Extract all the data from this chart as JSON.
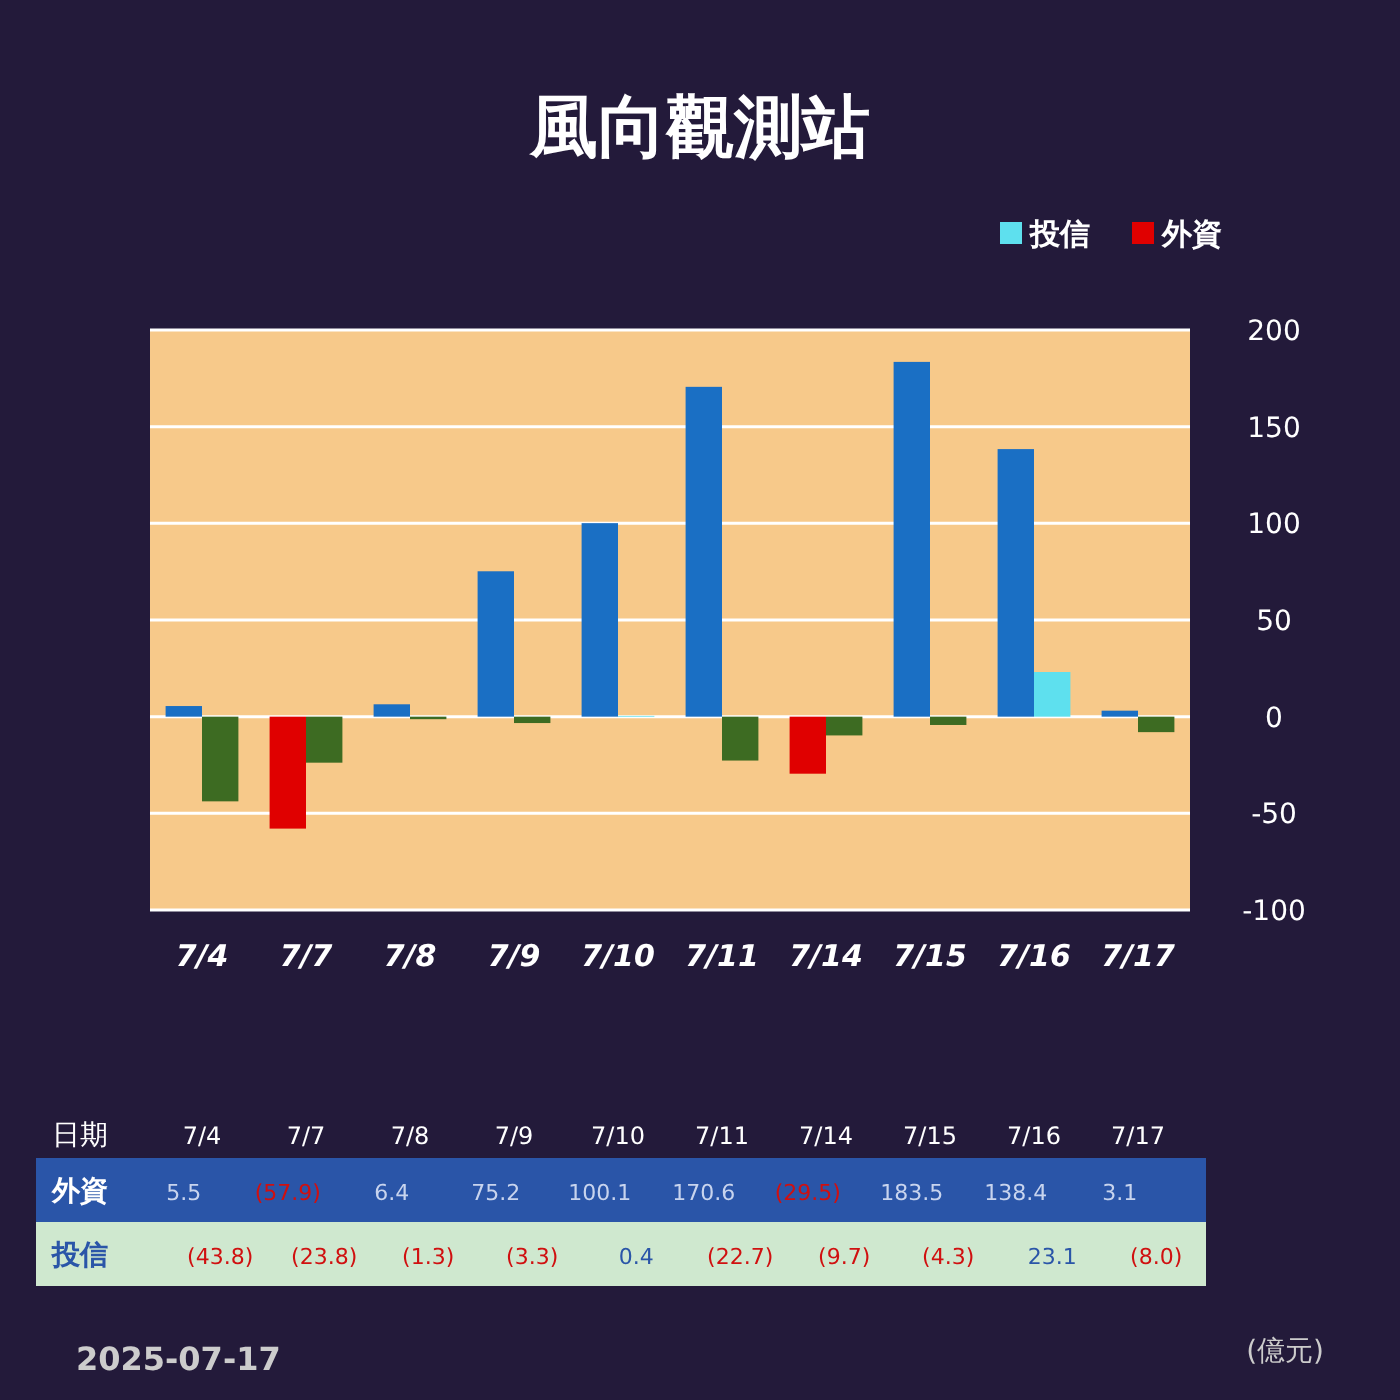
{
  "chart_data": {
    "type": "bar",
    "title": "風向觀測站",
    "categories": [
      "7/4",
      "7/7",
      "7/8",
      "7/9",
      "7/10",
      "7/11",
      "7/14",
      "7/15",
      "7/16",
      "7/17"
    ],
    "series": [
      {
        "name": "外資",
        "color": "#e00000",
        "colors": [
          "#1a6fc4",
          "#e00000",
          "#1a6fc4",
          "#1a6fc4",
          "#1a6fc4",
          "#1a6fc4",
          "#e00000",
          "#1a6fc4",
          "#1a6fc4",
          "#1a6fc4"
        ],
        "values": [
          5.5,
          -57.9,
          6.4,
          75.2,
          100.1,
          170.6,
          -29.5,
          183.5,
          138.4,
          3.1
        ],
        "value_labels": [
          "5.5",
          "(57.9)",
          "6.4",
          "75.2",
          "100.1",
          "170.6",
          "(29.5)",
          "183.5",
          "138.4",
          "3.1"
        ]
      },
      {
        "name": "投信",
        "color": "#5ee0ee",
        "colors": [
          "#3d6b22",
          "#3d6b22",
          "#3d6b22",
          "#3d6b22",
          "#5ee0ee",
          "#3d6b22",
          "#3d6b22",
          "#3d6b22",
          "#5ee0ee",
          "#3d6b22"
        ],
        "values": [
          -43.8,
          -23.8,
          -1.3,
          -3.3,
          0.4,
          -22.7,
          -9.7,
          -4.3,
          23.1,
          -8.0
        ],
        "value_labels": [
          "(43.8)",
          "(23.8)",
          "(1.3)",
          "(3.3)",
          "0.4",
          "(22.7)",
          "(9.7)",
          "(4.3)",
          "23.1",
          "(8.0)"
        ]
      }
    ],
    "ylim": [
      -100,
      200
    ],
    "yticks": [
      -100,
      -50,
      0,
      50,
      100,
      150,
      200
    ],
    "grid": "y",
    "legend": "top right",
    "annotations": [
      "日期",
      "2025-07-17",
      "(億元)"
    ]
  }
}
